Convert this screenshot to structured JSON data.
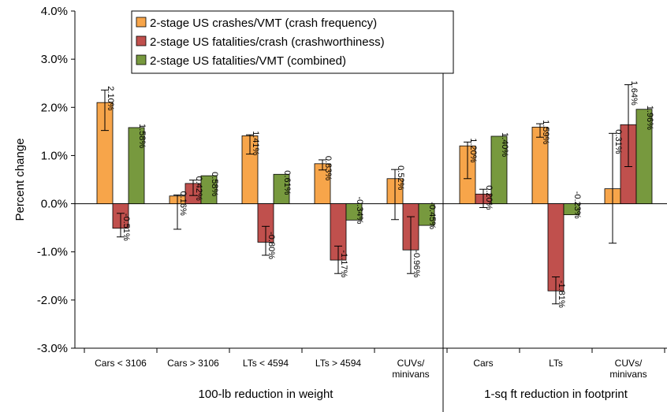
{
  "chart_data": {
    "type": "bar",
    "ylabel": "Percent change",
    "ylim": [
      -3.0,
      4.0
    ],
    "ytick_step": 1.0,
    "yticks": [
      "-3.0%",
      "-2.0%",
      "-1.0%",
      "0.0%",
      "1.0%",
      "2.0%",
      "3.0%",
      "4.0%"
    ],
    "grid": false,
    "legend_position": "top-left, boxed",
    "categories": [
      [
        "Cars < 3106"
      ],
      [
        "Cars > 3106"
      ],
      [
        "LTs < 4594"
      ],
      [
        "LTs > 4594"
      ],
      [
        "CUVs/",
        "minivans"
      ],
      [
        "Cars"
      ],
      [
        "LTs"
      ],
      [
        "CUVs/",
        "minivans"
      ]
    ],
    "groups": [
      {
        "label": "100-lb reduction in weight",
        "start": 0,
        "end": 4
      },
      {
        "label": "1-sq ft reduction in footprint",
        "start": 5,
        "end": 7
      }
    ],
    "series": [
      {
        "name": "2-stage US crashes/VMT (crash frequency)",
        "color": "#F7A54A",
        "values": [
          2.1,
          0.16,
          1.41,
          0.83,
          0.52,
          1.2,
          1.59,
          0.31
        ],
        "labels": [
          "2.10%",
          "0.16%",
          "1.41%",
          "0.83%",
          "0.52%",
          "1.20%",
          "1.59%",
          "0.31%"
        ],
        "err_low": [
          1.52,
          -0.53,
          1.03,
          0.7,
          -0.33,
          0.52,
          1.38,
          -0.82
        ],
        "err_high": [
          2.36,
          0.18,
          1.43,
          0.91,
          0.71,
          1.28,
          1.66,
          1.46
        ]
      },
      {
        "name": "2-stage US fatalities/crash (crashworthiness)",
        "color": "#C0504D",
        "values": [
          -0.51,
          0.42,
          -0.8,
          -1.17,
          -0.96,
          0.2,
          -1.81,
          1.64
        ],
        "labels": [
          "-0.51%",
          "0.42%",
          "-0.80%",
          "-1.17%",
          "-0.96%",
          "0.20%",
          "-1.81%",
          "1.64%"
        ],
        "err_low": [
          -0.69,
          0.17,
          -1.07,
          -1.45,
          -1.45,
          -0.08,
          -2.08,
          0.77
        ],
        "err_high": [
          -0.2,
          0.49,
          -0.47,
          -0.88,
          -0.27,
          0.3,
          -1.52,
          2.47
        ]
      },
      {
        "name": "2-stage US fatalities/VMT (combined)",
        "color": "#77993E",
        "values": [
          1.58,
          0.58,
          0.61,
          -0.34,
          -0.45,
          1.4,
          -0.23,
          1.96
        ],
        "labels": [
          "1.58%",
          "0.58%",
          "0.61%",
          "-0.34%",
          "-0.45%",
          "1.40%",
          "-0.23%",
          "1.96%"
        ],
        "err_low": [
          null,
          null,
          null,
          null,
          null,
          null,
          null,
          null
        ],
        "err_high": [
          null,
          null,
          null,
          null,
          null,
          null,
          null,
          null
        ]
      }
    ]
  }
}
